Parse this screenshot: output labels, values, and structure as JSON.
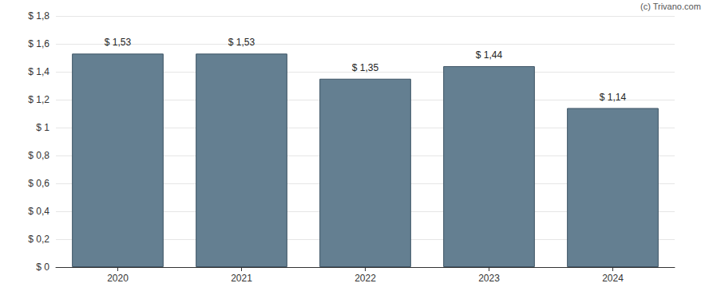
{
  "chart_data": {
    "type": "bar",
    "annotation": "(c) Trivano.com",
    "categories": [
      "2020",
      "2021",
      "2022",
      "2023",
      "2024"
    ],
    "values": [
      1.53,
      1.53,
      1.35,
      1.44,
      1.14
    ],
    "value_labels": [
      "$ 1,53",
      "$ 1,53",
      "$ 1,35",
      "$ 1,44",
      "$ 1,14"
    ],
    "data_labels": true,
    "color": "#647f91",
    "ylim": [
      0,
      1.8
    ],
    "yticks": [
      {
        "value": 0,
        "label": "$ 0"
      },
      {
        "value": 0.2,
        "label": "$ 0,2"
      },
      {
        "value": 0.4,
        "label": "$ 0,4"
      },
      {
        "value": 0.6,
        "label": "$ 0,6"
      },
      {
        "value": 0.8,
        "label": "$ 0,8"
      },
      {
        "value": 1,
        "label": "$ 1"
      },
      {
        "value": 1.2,
        "label": "$ 1,2"
      },
      {
        "value": 1.4,
        "label": "$ 1,4"
      },
      {
        "value": 1.6,
        "label": "$ 1,6"
      },
      {
        "value": 1.8,
        "label": "$ 1,8"
      }
    ],
    "grid": true
  }
}
